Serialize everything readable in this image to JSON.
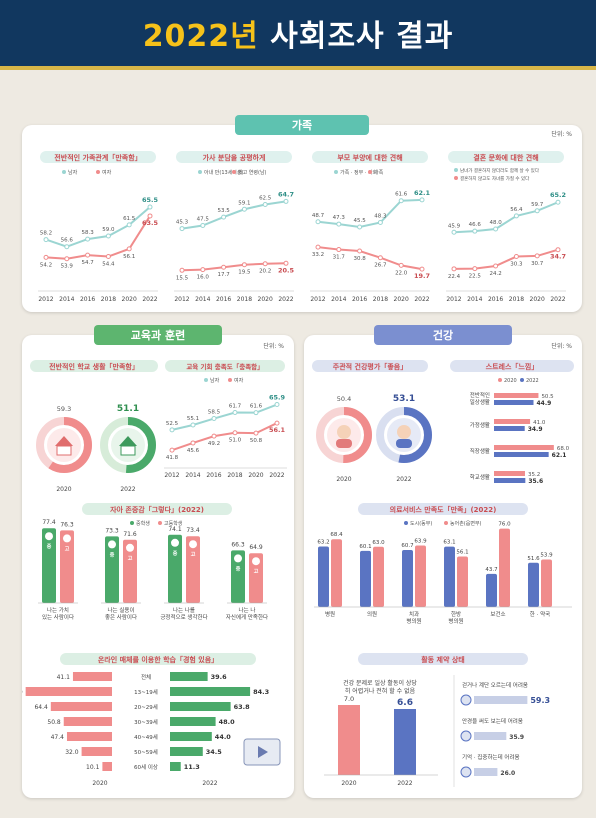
{
  "header": {
    "year_part": "2022년",
    "rest_part": "사회조사 결과"
  },
  "family": {
    "title": "가족",
    "unit": "단위: %",
    "years": [
      "2012",
      "2014",
      "2016",
      "2018",
      "2020",
      "2022"
    ],
    "charts": [
      {
        "title": "전반적인 가족관계「만족함」",
        "legend": [
          "남자",
          "여자"
        ],
        "series": [
          {
            "name": "남자",
            "values": [
              58.2,
              56.6,
              58.3,
              59.0,
              61.5,
              65.5
            ]
          },
          {
            "name": "여자",
            "values": [
              54.2,
              53.9,
              54.7,
              54.4,
              56.1,
              63.5
            ]
          }
        ],
        "ylim": [
          48,
          70
        ]
      },
      {
        "title": "가사 분담을 공평하게",
        "legend": [
          "아내 만(13세이상)",
          "최고 연령(남)"
        ],
        "series": [
          {
            "name": "아내 만(13세이상)",
            "values": [
              45.3,
              47.5,
              53.5,
              59.1,
              62.5,
              64.7
            ]
          },
          {
            "name": "최고 연령(남)",
            "values": [
              15.5,
              16.0,
              17.7,
              19.5,
              20.2,
              20.5
            ]
          }
        ],
        "ylim": [
          5,
          75
        ]
      },
      {
        "title": "부모 부양에 대한 견해",
        "legend": [
          "가족 · 정부 · 사회",
          "가족"
        ],
        "series": [
          {
            "name": "가족 · 정부 · 사회",
            "values": [
              48.7,
              47.3,
              45.5,
              48.3,
              61.6,
              62.1
            ]
          },
          {
            "name": "가족",
            "values": [
              33.2,
              31.7,
              30.8,
              26.7,
              22.0,
              19.7
            ]
          }
        ],
        "ylim": [
          10,
          70
        ]
      },
      {
        "title": "결혼 문화에 대한 견해",
        "legend": [
          "남녀가 결혼하지 않더라도 함께 살 수 있다",
          "결혼하지 않고도 자녀를 가질 수 있다"
        ],
        "series": [
          {
            "name": "함께 살 수 있다",
            "values": [
              45.9,
              46.6,
              48.0,
              56.4,
              59.7,
              65.2
            ]
          },
          {
            "name": "자녀를 가질 수 있다",
            "values": [
              22.4,
              22.5,
              24.2,
              30.3,
              30.7,
              34.7
            ]
          }
        ],
        "ylim": [
          12,
          75
        ]
      }
    ]
  },
  "edu": {
    "title": "교육과 훈련",
    "unit": "단위: %",
    "school": {
      "title": "전반적인 학교 생활「만족함」",
      "years": [
        "2020",
        "2022"
      ],
      "values": [
        59.3,
        51.1
      ]
    },
    "invest": {
      "title": "교육 기회 충족도「충족함」",
      "legend": [
        "남자",
        "여자"
      ],
      "years": [
        "2012",
        "2014",
        "2016",
        "2018",
        "2020",
        "2022"
      ],
      "series": [
        {
          "name": "남자",
          "values": [
            52.5,
            55.1,
            58.5,
            61.7,
            61.6,
            65.9
          ]
        },
        {
          "name": "여자",
          "values": [
            41.8,
            45.6,
            49.2,
            51.0,
            50.8,
            56.1
          ]
        }
      ],
      "ylim": [
        35,
        72
      ]
    },
    "esteem": {
      "title": "자아 존중감「그렇다」(2022)",
      "legend": [
        "중학생",
        "고등학생"
      ],
      "categories": [
        "나는 가치 있는 사람이다",
        "나는 실용이 좋은 사람이다",
        "나는 나를 긍정적으로 생각한다",
        "나는 나 자신에게 만족한다"
      ],
      "series": [
        {
          "name": "중학생",
          "values": [
            77.4,
            73.3,
            74.1,
            66.3
          ]
        },
        {
          "name": "고등학생",
          "values": [
            76.3,
            71.6,
            73.4,
            64.9
          ]
        }
      ],
      "badge_mid": "중",
      "badge_high": "고"
    },
    "online": {
      "title": "온라인 매체를 이용한 학습「경험 있음」",
      "groups": [
        "전체",
        "13~19세",
        "20~29세",
        "30~39세",
        "40~49세",
        "50~59세",
        "60세 이상"
      ],
      "y2020": [
        41.1,
        90.9,
        64.4,
        50.8,
        47.4,
        32.0,
        10.1
      ],
      "y2022": [
        39.6,
        84.3,
        63.8,
        48.0,
        44.0,
        34.5,
        11.3
      ],
      "year_left": "2020",
      "year_right": "2022"
    }
  },
  "health": {
    "title": "건강",
    "unit": "단위: %",
    "self": {
      "title": "주관적 건강평가「좋음」",
      "years": [
        "2020",
        "2022"
      ],
      "values": [
        50.4,
        53.1
      ]
    },
    "stress": {
      "title": "스트레스「느낌」",
      "legend": [
        "2020",
        "2022"
      ],
      "categories": [
        "전반적인 일상생활",
        "가정생활",
        "직장생활",
        "학교생활"
      ],
      "y2020": [
        50.5,
        41.0,
        68.0,
        35.2
      ],
      "y2022": [
        44.9,
        34.9,
        62.1,
        35.6
      ]
    },
    "medical": {
      "title": "의료서비스 만족도「만족」(2022)",
      "legend": [
        "도시(동부)",
        "농어촌(읍면부)"
      ],
      "categories": [
        "병원",
        "의원",
        "치과 병의원",
        "한방 병의원",
        "보건소",
        "한 · 약국"
      ],
      "urban": [
        63.2,
        60.1,
        60.7,
        63.1,
        43.7,
        51.6
      ],
      "rural": [
        68.4,
        63.0,
        63.9,
        56.1,
        76.0,
        53.9
      ]
    },
    "activity": {
      "title": "활동 제약 상태",
      "question": "건강 문제로 일상 활동이 상당히 어렵거나 전혀 할 수 없음",
      "years": [
        "2020",
        "2022"
      ],
      "values": [
        7.0,
        6.6
      ],
      "items": [
        {
          "label": "걷거나 계단 오르는데 어려움",
          "value": "59.3"
        },
        {
          "label": "안경을 써도 보는데 어려움",
          "value": "35.9"
        },
        {
          "label": "기억 · 집중하는데 어려움",
          "value": "26.0"
        }
      ]
    }
  },
  "colors": {
    "family": "#5ec2b0",
    "edu": "#5db56f",
    "health": "#7b8fd0",
    "pink": "#f08c8c",
    "teal": "#9bd5d2",
    "green": "#4aa96a",
    "blue": "#5a74c2"
  }
}
